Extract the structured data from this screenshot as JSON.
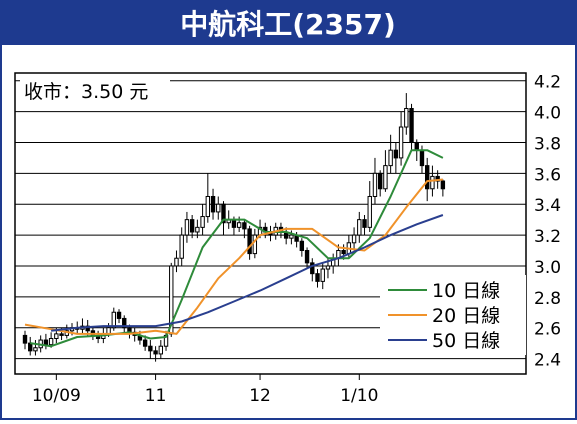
{
  "chart_data": {
    "type": "line",
    "title": "中航科工(2357)",
    "annotation": "收市：3.50 元",
    "y_range": [
      2.3,
      4.25
    ],
    "y_ticks": [
      {
        "value": 2.4,
        "label": "2.4"
      },
      {
        "value": 2.6,
        "label": "2.6"
      },
      {
        "value": 2.8,
        "label": "2.8"
      },
      {
        "value": 3.0,
        "label": "3.0"
      },
      {
        "value": 3.2,
        "label": "3.2"
      },
      {
        "value": 3.4,
        "label": "3.4"
      },
      {
        "value": 3.6,
        "label": "3.6"
      },
      {
        "value": 3.8,
        "label": "3.8"
      },
      {
        "value": 4.0,
        "label": "4.0"
      },
      {
        "value": 4.2,
        "label": "4.2"
      }
    ],
    "x_range": [
      0,
      94
    ],
    "x_ticks": [
      {
        "label": "10/09",
        "x": 6
      },
      {
        "label": "11",
        "x": 25
      },
      {
        "label": "12",
        "x": 45
      },
      {
        "label": "1/10",
        "x": 64
      }
    ],
    "grid": "horizontal",
    "legend_position": "bottom-right",
    "candles": [
      [
        2.55,
        2.5,
        2.58,
        2.46
      ],
      [
        2.5,
        2.45,
        2.54,
        2.42
      ],
      [
        2.45,
        2.47,
        2.52,
        2.42
      ],
      [
        2.47,
        2.52,
        2.55,
        2.44
      ],
      [
        2.52,
        2.49,
        2.56,
        2.46
      ],
      [
        2.49,
        2.53,
        2.57,
        2.47
      ],
      [
        2.53,
        2.56,
        2.6,
        2.5
      ],
      [
        2.56,
        2.55,
        2.6,
        2.52
      ],
      [
        2.55,
        2.58,
        2.62,
        2.53
      ],
      [
        2.58,
        2.6,
        2.63,
        2.55
      ],
      [
        2.6,
        2.59,
        2.64,
        2.56
      ],
      [
        2.59,
        2.61,
        2.66,
        2.56
      ],
      [
        2.61,
        2.58,
        2.65,
        2.55
      ],
      [
        2.58,
        2.55,
        2.6,
        2.52
      ],
      [
        2.55,
        2.53,
        2.58,
        2.5
      ],
      [
        2.53,
        2.56,
        2.6,
        2.5
      ],
      [
        2.56,
        2.6,
        2.63,
        2.54
      ],
      [
        2.6,
        2.7,
        2.73,
        2.58
      ],
      [
        2.7,
        2.66,
        2.72,
        2.63
      ],
      [
        2.66,
        2.6,
        2.68,
        2.57
      ],
      [
        2.6,
        2.57,
        2.62,
        2.53
      ],
      [
        2.57,
        2.55,
        2.6,
        2.51
      ],
      [
        2.55,
        2.52,
        2.58,
        2.49
      ],
      [
        2.52,
        2.48,
        2.55,
        2.45
      ],
      [
        2.48,
        2.45,
        2.52,
        2.4
      ],
      [
        2.45,
        2.43,
        2.48,
        2.38
      ],
      [
        2.43,
        2.48,
        2.52,
        2.4
      ],
      [
        2.48,
        2.55,
        2.58,
        2.45
      ],
      [
        2.56,
        3.0,
        3.02,
        2.54
      ],
      [
        3.0,
        3.05,
        3.1,
        2.96
      ],
      [
        3.05,
        3.2,
        3.25,
        3.0
      ],
      [
        3.2,
        3.3,
        3.35,
        3.15
      ],
      [
        3.3,
        3.22,
        3.33,
        3.18
      ],
      [
        3.22,
        3.25,
        3.3,
        3.18
      ],
      [
        3.25,
        3.32,
        3.4,
        3.2
      ],
      [
        3.32,
        3.45,
        3.6,
        3.28
      ],
      [
        3.45,
        3.35,
        3.5,
        3.3
      ],
      [
        3.35,
        3.4,
        3.45,
        3.3
      ],
      [
        3.4,
        3.28,
        3.42,
        3.2
      ],
      [
        3.28,
        3.3,
        3.36,
        3.24
      ],
      [
        3.3,
        3.25,
        3.32,
        3.2
      ],
      [
        3.25,
        3.28,
        3.32,
        3.22
      ],
      [
        3.28,
        3.24,
        3.3,
        3.18
      ],
      [
        3.24,
        3.08,
        3.26,
        3.04
      ],
      [
        3.08,
        3.2,
        3.24,
        3.05
      ],
      [
        3.2,
        3.25,
        3.3,
        3.18
      ],
      [
        3.25,
        3.22,
        3.28,
        3.18
      ],
      [
        3.22,
        3.2,
        3.26,
        3.16
      ],
      [
        3.2,
        3.25,
        3.28,
        3.17
      ],
      [
        3.25,
        3.22,
        3.28,
        3.18
      ],
      [
        3.22,
        3.18,
        3.25,
        3.14
      ],
      [
        3.18,
        3.2,
        3.23,
        3.14
      ],
      [
        3.2,
        3.16,
        3.22,
        3.12
      ],
      [
        3.16,
        3.1,
        3.18,
        3.06
      ],
      [
        3.1,
        3.02,
        3.12,
        2.98
      ],
      [
        3.02,
        2.95,
        3.05,
        2.9
      ],
      [
        2.95,
        2.9,
        2.98,
        2.86
      ],
      [
        2.9,
        2.98,
        3.02,
        2.85
      ],
      [
        2.98,
        3.0,
        3.05,
        2.92
      ],
      [
        3.0,
        3.05,
        3.08,
        2.95
      ],
      [
        3.05,
        3.1,
        3.14,
        3.0
      ],
      [
        3.1,
        3.08,
        3.14,
        3.04
      ],
      [
        3.08,
        3.15,
        3.2,
        3.05
      ],
      [
        3.15,
        3.2,
        3.25,
        3.1
      ],
      [
        3.2,
        3.3,
        3.35,
        3.15
      ],
      [
        3.3,
        3.25,
        3.33,
        3.2
      ],
      [
        3.25,
        3.45,
        3.55,
        3.22
      ],
      [
        3.45,
        3.6,
        3.7,
        3.4
      ],
      [
        3.6,
        3.5,
        3.62,
        3.45
      ],
      [
        3.5,
        3.65,
        3.75,
        3.48
      ],
      [
        3.65,
        3.75,
        3.85,
        3.6
      ],
      [
        3.75,
        3.7,
        3.8,
        3.6
      ],
      [
        3.7,
        3.9,
        4.0,
        3.65
      ],
      [
        3.9,
        4.02,
        4.12,
        3.85
      ],
      [
        4.02,
        3.8,
        4.05,
        3.75
      ],
      [
        3.8,
        3.75,
        3.82,
        3.68
      ],
      [
        3.75,
        3.65,
        3.78,
        3.6
      ],
      [
        3.65,
        3.5,
        3.7,
        3.42
      ],
      [
        3.5,
        3.58,
        3.65,
        3.45
      ],
      [
        3.58,
        3.55,
        3.62,
        3.5
      ],
      [
        3.55,
        3.5,
        3.56,
        3.45
      ]
    ],
    "series": [
      {
        "name": "10 日線",
        "color": "#2e8b3a",
        "points": [
          [
            1,
            2.5
          ],
          [
            5,
            2.48
          ],
          [
            10,
            2.54
          ],
          [
            15,
            2.55
          ],
          [
            20,
            2.57
          ],
          [
            24,
            2.53
          ],
          [
            27,
            2.54
          ],
          [
            30,
            2.78
          ],
          [
            34,
            3.12
          ],
          [
            38,
            3.3
          ],
          [
            42,
            3.3
          ],
          [
            46,
            3.22
          ],
          [
            50,
            3.22
          ],
          [
            54,
            3.18
          ],
          [
            58,
            3.05
          ],
          [
            62,
            3.05
          ],
          [
            66,
            3.18
          ],
          [
            70,
            3.45
          ],
          [
            74,
            3.75
          ],
          [
            77,
            3.75
          ],
          [
            80,
            3.7
          ]
        ]
      },
      {
        "name": "20 日線",
        "color": "#f0922a",
        "points": [
          [
            0,
            2.62
          ],
          [
            5,
            2.59
          ],
          [
            10,
            2.56
          ],
          [
            20,
            2.56
          ],
          [
            25,
            2.58
          ],
          [
            29,
            2.56
          ],
          [
            33,
            2.73
          ],
          [
            37,
            2.92
          ],
          [
            41,
            3.05
          ],
          [
            45,
            3.2
          ],
          [
            50,
            3.24
          ],
          [
            55,
            3.24
          ],
          [
            60,
            3.12
          ],
          [
            65,
            3.1
          ],
          [
            69,
            3.2
          ],
          [
            73,
            3.38
          ],
          [
            77,
            3.55
          ],
          [
            80,
            3.56
          ]
        ]
      },
      {
        "name": "50 日線",
        "color": "#2a3f8f",
        "points": [
          [
            5,
            2.58
          ],
          [
            10,
            2.6
          ],
          [
            15,
            2.61
          ],
          [
            20,
            2.61
          ],
          [
            25,
            2.61
          ],
          [
            30,
            2.64
          ],
          [
            35,
            2.7
          ],
          [
            40,
            2.77
          ],
          [
            45,
            2.84
          ],
          [
            50,
            2.92
          ],
          [
            55,
            3.0
          ],
          [
            60,
            3.05
          ],
          [
            65,
            3.12
          ],
          [
            70,
            3.2
          ],
          [
            75,
            3.27
          ],
          [
            80,
            3.33
          ]
        ]
      }
    ]
  }
}
